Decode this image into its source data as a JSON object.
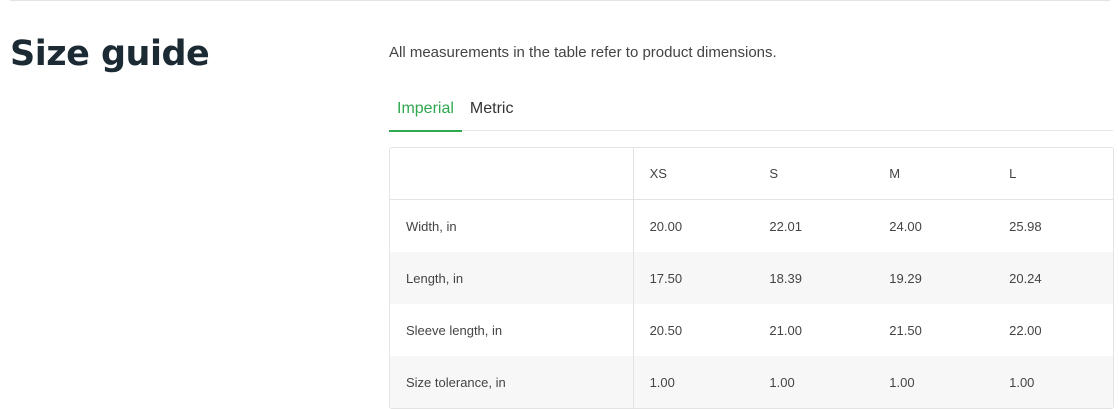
{
  "title": "Size guide",
  "description": "All measurements in the table refer to product dimensions.",
  "tabs": [
    {
      "label": "Imperial",
      "active": true
    },
    {
      "label": "Metric",
      "active": false
    }
  ],
  "accent_color": "#2fa84f",
  "table": {
    "headers": [
      "",
      "XS",
      "S",
      "M",
      "L"
    ],
    "rows": [
      [
        "Width, in",
        "20.00",
        "22.01",
        "24.00",
        "25.98"
      ],
      [
        "Length, in",
        "17.50",
        "18.39",
        "19.29",
        "20.24"
      ],
      [
        "Sleeve length, in",
        "20.50",
        "21.00",
        "21.50",
        "22.00"
      ],
      [
        "Size tolerance, in",
        "1.00",
        "1.00",
        "1.00",
        "1.00"
      ]
    ]
  }
}
